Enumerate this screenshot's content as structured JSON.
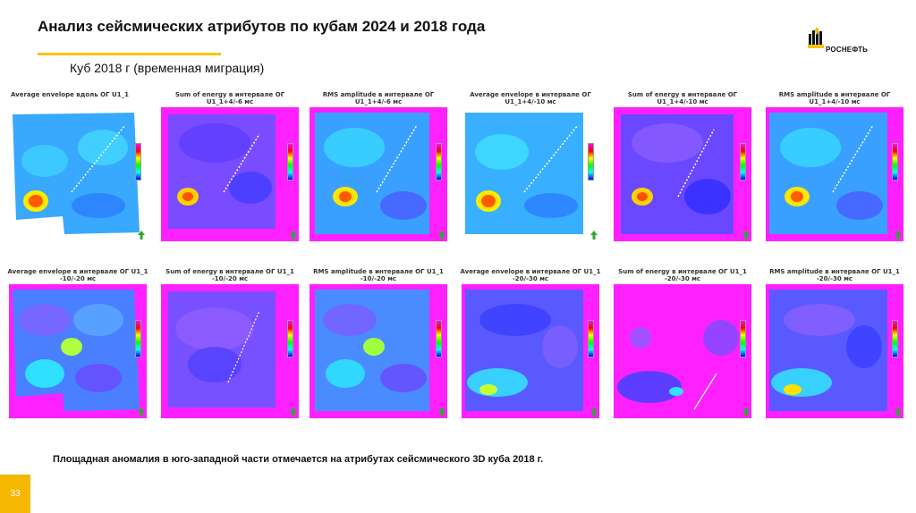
{
  "title": "Анализ сейсмических атрибутов по кубам 2024 и 2018 года",
  "subtitle": "Куб 2018 г (временная миграция)",
  "logo_text": "РОСНЕФТЬ",
  "panels_row1": [
    {
      "title": "Average envelope вдоль ОГ U1_1"
    },
    {
      "title": "Sum of energy в интервале ОГ U1_1+4/-6 мс"
    },
    {
      "title": "RMS amplitude в интервале ОГ U1_1+4/-6 мс"
    },
    {
      "title": "Average envelope в интервале ОГ U1_1+4/-10 мс"
    },
    {
      "title": "Sum of energy в интервале ОГ U1_1+4/-10 мс"
    },
    {
      "title": "RMS amplitude в интервале ОГ U1_1+4/-10 мс"
    }
  ],
  "panels_row2": [
    {
      "title": "Average envelope в интервале ОГ U1_1 -10/-20 мс"
    },
    {
      "title": "Sum of energy в интервале ОГ U1_1 -10/-20 мс"
    },
    {
      "title": "RMS amplitude в интервале ОГ U1_1 -10/-20 мс"
    },
    {
      "title": "Average envelope в интервале ОГ U1_1 -20/-30 мс"
    },
    {
      "title": "Sum of energy в интервале ОГ U1_1 -20/-30 мс"
    },
    {
      "title": "RMS amplitude в интервале ОГ U1_1 -20/-30 мс"
    }
  ],
  "caption": "Площадная аномалия в юго-западной части отмечается на атрибутах сейсмического 3D куба 2018 г.",
  "page_number": "33",
  "colors": {
    "accent": "#f5c400",
    "magenta": "#ff00ff",
    "arrow": "#2ea82e"
  }
}
